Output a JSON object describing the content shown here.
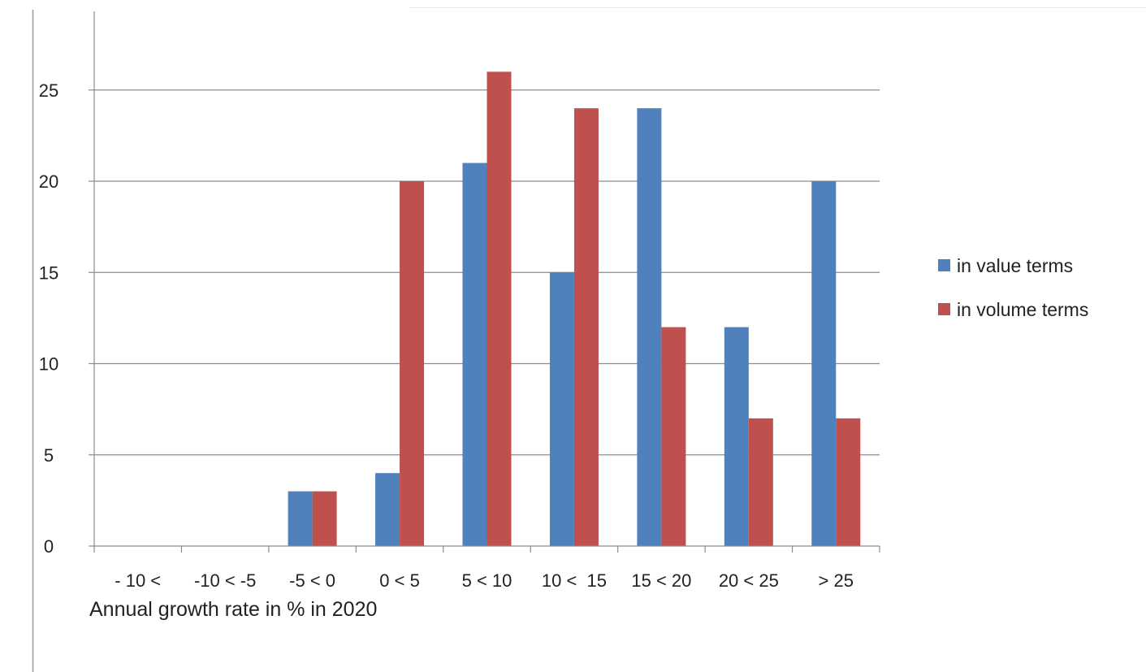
{
  "chart_data": {
    "type": "bar",
    "categories": [
      "- 10 <",
      "-10 < -5",
      "-5 < 0",
      "0 < 5",
      "5 < 10",
      "10 <  15",
      "15 < 20",
      "20 < 25",
      "> 25"
    ],
    "series": [
      {
        "name": "in value terms",
        "color": "#4f81bd",
        "values": [
          0,
          0,
          3,
          4,
          21,
          15,
          24,
          12,
          20
        ]
      },
      {
        "name": "in volume terms",
        "color": "#c0504d",
        "values": [
          0,
          0,
          3,
          20,
          26,
          24,
          12,
          7,
          7
        ]
      }
    ],
    "title": "",
    "xlabel": "Annual growth rate in % in 2020",
    "ylabel": "",
    "ylim": [
      0,
      25
    ],
    "yticks": [
      0,
      5,
      10,
      15,
      20,
      25
    ],
    "grid": true,
    "legend_position": "right"
  }
}
